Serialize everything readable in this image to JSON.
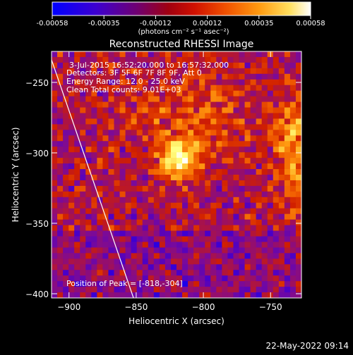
{
  "colorbar": {
    "ticks": [
      "-0.00058",
      "-0.00035",
      "-0.00012",
      "0.00012",
      "0.00035",
      "0.00058"
    ],
    "unit_text": "(photons cm⁻² s⁻¹ asec⁻²)"
  },
  "plot": {
    "title": "Reconstructed RHESSI Image",
    "info_lines": [
      "3-Jul-2015 16:52:20.000 to 16:57:32.000",
      "Detectors: 3F 5F 6F 7F 8F 9F, Att 0",
      "Energy Range: 12.0 - 25.0 keV",
      "Clean     Total counts: 9.01E+03"
    ],
    "peak_text": "Position of Peak = [-818,-304]",
    "footer_date": "22-May-2022 09:14"
  },
  "chart_data": {
    "type": "heatmap",
    "title": "Reconstructed RHESSI Image",
    "xlabel": "Heliocentric X (arcsec)",
    "ylabel": "Heliocentric Y (arcsec)",
    "xlim": [
      -913,
      -727
    ],
    "ylim": [
      -403,
      -228
    ],
    "xticks": [
      -900,
      -850,
      -800,
      -750
    ],
    "yticks": [
      -250,
      -300,
      -350,
      -400
    ],
    "peak": {
      "x": -818,
      "y": -304
    },
    "limb_line": [
      [
        -913,
        -234
      ],
      [
        -852,
        -403
      ]
    ],
    "colorscale": [
      "#0000ff",
      "#4a00c8",
      "#7a0a9a",
      "#a0105a",
      "#d01e00",
      "#f05a00",
      "#ff9a10",
      "#ffd040",
      "#ffff80",
      "#ffffff"
    ]
  }
}
